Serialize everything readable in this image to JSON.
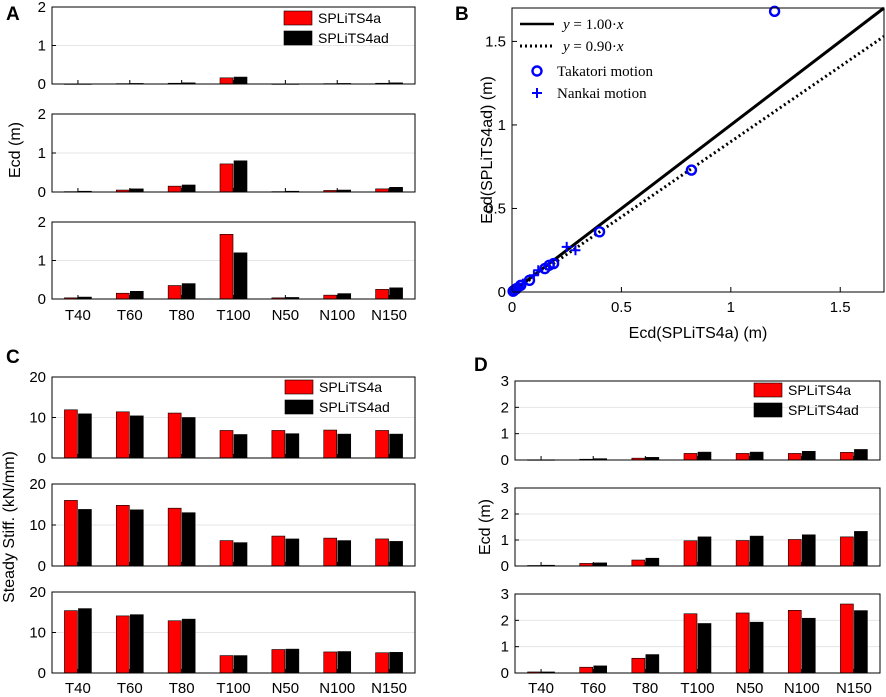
{
  "colors": {
    "red": "#ff0000",
    "black": "#000000",
    "blue": "#0000ff",
    "grid": "#e6e6e6"
  },
  "chart_data": [
    {
      "panel": "A",
      "type": "bar",
      "ylabel": "Ecd (m)",
      "categories": [
        "T40",
        "T60",
        "T80",
        "T100",
        "N50",
        "N100",
        "N150"
      ],
      "legend": [
        "SPLiTS4a",
        "SPLiTS4ad"
      ],
      "subplots": [
        {
          "ylim": [
            0,
            2
          ],
          "yticks": [
            "0",
            "1",
            "2"
          ],
          "series": [
            {
              "name": "SPLiTS4a",
              "values": [
                0.005,
                0.01,
                0.02,
                0.16,
                0.005,
                0.01,
                0.02
              ]
            },
            {
              "name": "SPLiTS4ad",
              "values": [
                0.005,
                0.015,
                0.03,
                0.18,
                0.005,
                0.015,
                0.03
              ]
            }
          ]
        },
        {
          "ylim": [
            0,
            2
          ],
          "yticks": [
            "0",
            "1",
            "2"
          ],
          "series": [
            {
              "name": "SPLiTS4a",
              "values": [
                0.01,
                0.05,
                0.15,
                0.72,
                0.01,
                0.04,
                0.08
              ]
            },
            {
              "name": "SPLiTS4ad",
              "values": [
                0.02,
                0.08,
                0.18,
                0.8,
                0.02,
                0.05,
                0.12
              ]
            }
          ]
        },
        {
          "ylim": [
            0,
            2
          ],
          "yticks": [
            "0",
            "1",
            "2"
          ],
          "series": [
            {
              "name": "SPLiTS4a",
              "values": [
                0.03,
                0.15,
                0.35,
                1.68,
                0.03,
                0.1,
                0.25
              ]
            },
            {
              "name": "SPLiTS4ad",
              "values": [
                0.05,
                0.2,
                0.4,
                1.2,
                0.04,
                0.14,
                0.29
              ]
            }
          ]
        }
      ]
    },
    {
      "panel": "B",
      "type": "scatter",
      "xlabel": "Ecd(SPLiTS4a) (m)",
      "ylabel": "Ecd(SPLiTS4ad) (m)",
      "xlim": [
        0,
        1.7
      ],
      "ylim": [
        0,
        1.7
      ],
      "xticks": [
        {
          "v": 0,
          "label": "0"
        },
        {
          "v": 0.5,
          "label": "0.5"
        },
        {
          "v": 1,
          "label": "1"
        },
        {
          "v": 1.5,
          "label": "1.5"
        }
      ],
      "yticks": [
        {
          "v": 0,
          "label": "0"
        },
        {
          "v": 0.5,
          "label": "0.5"
        },
        {
          "v": 1,
          "label": "1"
        },
        {
          "v": 1.5,
          "label": "1.5"
        }
      ],
      "lines": [
        {
          "name": "y = 1.00·x",
          "slope": 1.0,
          "style": "solid"
        },
        {
          "name": "y = 0.90·x",
          "slope": 0.9,
          "style": "dotted"
        }
      ],
      "legend_text": [
        {
          "prefix": "y",
          "mid": " = 1.00·",
          "suffix": "x"
        },
        {
          "prefix": "y",
          "mid": " = 0.90·",
          "suffix": "x"
        }
      ],
      "series": [
        {
          "name": "Takatori motion",
          "marker": "o",
          "points": [
            [
              0.005,
              0.005
            ],
            [
              0.01,
              0.01
            ],
            [
              0.02,
              0.02
            ],
            [
              0.04,
              0.04
            ],
            [
              0.08,
              0.07
            ],
            [
              0.15,
              0.14
            ],
            [
              0.17,
              0.16
            ],
            [
              0.19,
              0.17
            ],
            [
              0.4,
              0.36
            ],
            [
              0.82,
              0.73
            ],
            [
              1.2,
              1.68
            ]
          ]
        },
        {
          "name": "Nankai motion",
          "marker": "+",
          "points": [
            [
              0.01,
              0.01
            ],
            [
              0.02,
              0.02
            ],
            [
              0.03,
              0.03
            ],
            [
              0.05,
              0.05
            ],
            [
              0.1,
              0.1
            ],
            [
              0.12,
              0.13
            ],
            [
              0.25,
              0.27
            ],
            [
              0.29,
              0.25
            ]
          ]
        }
      ]
    },
    {
      "panel": "C",
      "type": "bar",
      "ylabel": "Steady Stiff. (kN/mm)",
      "categories": [
        "T40",
        "T60",
        "T80",
        "T100",
        "N50",
        "N100",
        "N150"
      ],
      "legend": [
        "SPLiTS4a",
        "SPLiTS4ad"
      ],
      "subplots": [
        {
          "ylim": [
            0,
            20
          ],
          "yticks": [
            "0",
            "10",
            "20"
          ],
          "series": [
            {
              "name": "SPLiTS4a",
              "values": [
                11.9,
                11.4,
                11.1,
                6.8,
                6.8,
                6.9,
                6.8
              ]
            },
            {
              "name": "SPLiTS4ad",
              "values": [
                10.9,
                10.4,
                10.0,
                5.8,
                6.0,
                5.9,
                5.9
              ]
            }
          ]
        },
        {
          "ylim": [
            0,
            20
          ],
          "yticks": [
            "0",
            "10",
            "20"
          ],
          "series": [
            {
              "name": "SPLiTS4a",
              "values": [
                16.0,
                14.8,
                14.1,
                6.2,
                7.3,
                6.8,
                6.6
              ]
            },
            {
              "name": "SPLiTS4ad",
              "values": [
                13.8,
                13.7,
                13.0,
                5.7,
                6.6,
                6.2,
                6.0
              ]
            }
          ]
        },
        {
          "ylim": [
            0,
            20
          ],
          "yticks": [
            "0",
            "10",
            "20"
          ],
          "series": [
            {
              "name": "SPLiTS4a",
              "values": [
                15.4,
                14.1,
                12.9,
                4.3,
                5.8,
                5.2,
                5.0
              ]
            },
            {
              "name": "SPLiTS4ad",
              "values": [
                15.9,
                14.4,
                13.3,
                4.3,
                5.9,
                5.3,
                5.1
              ]
            }
          ]
        }
      ]
    },
    {
      "panel": "D",
      "type": "bar",
      "ylabel": "Ecd (m)",
      "categories": [
        "T40",
        "T60",
        "T80",
        "T100",
        "N50",
        "N100",
        "N150"
      ],
      "legend": [
        "SPLiTS4a",
        "SPLiTS4ad"
      ],
      "subplots": [
        {
          "ylim": [
            0,
            3
          ],
          "yticks": [
            "0",
            "1",
            "2",
            "3"
          ],
          "series": [
            {
              "name": "SPLiTS4a",
              "values": [
                0.01,
                0.03,
                0.07,
                0.25,
                0.25,
                0.25,
                0.29
              ]
            },
            {
              "name": "SPLiTS4ad",
              "values": [
                0.01,
                0.05,
                0.1,
                0.3,
                0.3,
                0.33,
                0.4
              ]
            }
          ]
        },
        {
          "ylim": [
            0,
            3
          ],
          "yticks": [
            "0",
            "1",
            "2",
            "3"
          ],
          "series": [
            {
              "name": "SPLiTS4a",
              "values": [
                0.02,
                0.1,
                0.23,
                0.97,
                0.98,
                1.02,
                1.12
              ]
            },
            {
              "name": "SPLiTS4ad",
              "values": [
                0.03,
                0.12,
                0.3,
                1.12,
                1.15,
                1.2,
                1.33
              ]
            }
          ]
        },
        {
          "ylim": [
            0,
            3
          ],
          "yticks": [
            "0",
            "1",
            "2",
            "3"
          ],
          "series": [
            {
              "name": "SPLiTS4a",
              "values": [
                0.04,
                0.22,
                0.56,
                2.25,
                2.28,
                2.38,
                2.62
              ]
            },
            {
              "name": "SPLiTS4ad",
              "values": [
                0.04,
                0.27,
                0.7,
                1.88,
                1.93,
                2.08,
                2.37
              ]
            }
          ]
        }
      ]
    }
  ]
}
